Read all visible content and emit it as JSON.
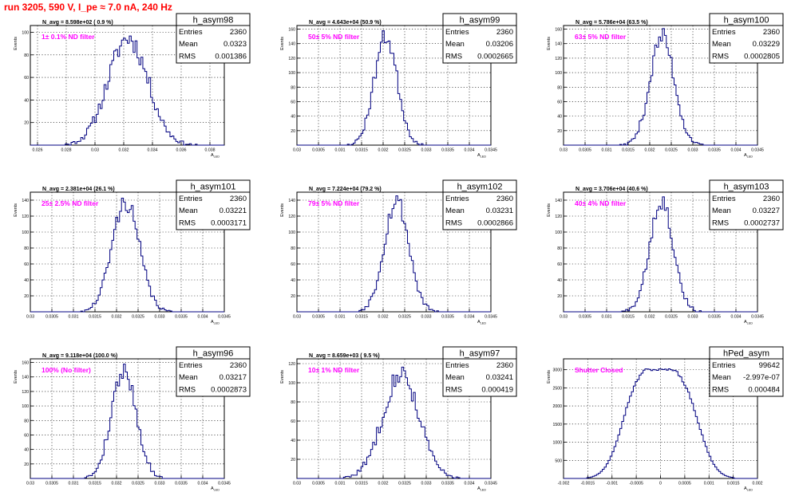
{
  "run_title": "run 3205,   590 V, I_pe ≈ 7.0 nA, 240 Hz",
  "colors": {
    "hist": "#000080",
    "annot": "#ff00ff",
    "title": "#ff0000",
    "grid": "#000000"
  },
  "stats_labels": {
    "entries": "Entries",
    "mean": "Mean",
    "rms": "RMS"
  },
  "ylabel": "Events",
  "xlabel": "A",
  "xlabel_sub": "LED",
  "chart_data": [
    {
      "type": "bar",
      "name": "h_asym98",
      "navg": "N_avg = 8.598e+02 ( 0.9 %)",
      "note": "1± 0.1% ND filter",
      "stats": {
        "entries": "2360",
        "mean": "0.0323",
        "rms": "0.001386"
      },
      "xlim": [
        0.0255,
        0.039
      ],
      "ylim": [
        0,
        106
      ],
      "xticks": [
        0.026,
        0.028,
        0.03,
        0.032,
        0.034,
        0.036,
        0.038
      ],
      "xtick_labels": [
        "0.026",
        "0.028",
        "0.03",
        "0.032",
        "0.034",
        "0.036",
        "0.038"
      ],
      "yticks": [
        20,
        40,
        60,
        80,
        100
      ],
      "ytick_labels": [
        "20",
        "40",
        "60",
        "80",
        "100"
      ],
      "mean": 0.0323,
      "sigma": 0.001386,
      "peak": 95,
      "seed": 11
    },
    {
      "type": "bar",
      "name": "h_asym99",
      "navg": "N_avg = 4.643e+04 (50.9 %)",
      "note": "50± 5% ND filter",
      "stats": {
        "entries": "2360",
        "mean": "0.03206",
        "rms": "0.0002665"
      },
      "xlim": [
        0.03,
        0.0345
      ],
      "ylim": [
        0,
        165
      ],
      "xticks": [
        0.03,
        0.0305,
        0.031,
        0.0315,
        0.032,
        0.0325,
        0.033,
        0.0335,
        0.034,
        0.0345
      ],
      "xtick_labels": [
        "0.03",
        "0.0305",
        "0.031",
        "0.0315",
        "0.032",
        "0.0325",
        "0.033",
        "0.0335",
        "0.034",
        "0.0345"
      ],
      "yticks": [
        20,
        40,
        60,
        80,
        100,
        120,
        140,
        160
      ],
      "ytick_labels": [
        "20",
        "40",
        "60",
        "80",
        "100",
        "120",
        "140",
        "160"
      ],
      "mean": 0.03206,
      "sigma": 0.0002665,
      "peak": 150,
      "seed": 23
    },
    {
      "type": "bar",
      "name": "h_asym100",
      "navg": "N_avg = 5.786e+04 (63.5 %)",
      "note": "63± 5% ND filter",
      "stats": {
        "entries": "2360",
        "mean": "0.03229",
        "rms": "0.0002805"
      },
      "xlim": [
        0.03,
        0.0345
      ],
      "ylim": [
        0,
        165
      ],
      "xticks": [
        0.03,
        0.0305,
        0.031,
        0.0315,
        0.032,
        0.0325,
        0.033,
        0.0335,
        0.034,
        0.0345
      ],
      "xtick_labels": [
        "0.03",
        "0.0305",
        "0.031",
        "0.0315",
        "0.032",
        "0.0325",
        "0.033",
        "0.0335",
        "0.034",
        "0.0345"
      ],
      "yticks": [
        20,
        40,
        60,
        80,
        100,
        120,
        140,
        160
      ],
      "ytick_labels": [
        "20",
        "40",
        "60",
        "80",
        "100",
        "120",
        "140",
        "160"
      ],
      "mean": 0.03229,
      "sigma": 0.0002805,
      "peak": 150,
      "seed": 37
    },
    {
      "type": "bar",
      "name": "h_asym101",
      "navg": "N_avg = 2.381e+04 (26.1 %)",
      "note": "25± 2.5% ND filter",
      "stats": {
        "entries": "2360",
        "mean": "0.03221",
        "rms": "0.0003171"
      },
      "xlim": [
        0.03,
        0.0345
      ],
      "ylim": [
        0,
        150
      ],
      "xticks": [
        0.03,
        0.0305,
        0.031,
        0.0315,
        0.032,
        0.0325,
        0.033,
        0.0335,
        0.034,
        0.0345
      ],
      "xtick_labels": [
        "0.03",
        "0.0305",
        "0.031",
        "0.0315",
        "0.032",
        "0.0325",
        "0.033",
        "0.0335",
        "0.034",
        "0.0345"
      ],
      "yticks": [
        20,
        40,
        60,
        80,
        100,
        120,
        140
      ],
      "ytick_labels": [
        "20",
        "40",
        "60",
        "80",
        "100",
        "120",
        "140"
      ],
      "mean": 0.03221,
      "sigma": 0.0003171,
      "peak": 138,
      "seed": 41
    },
    {
      "type": "bar",
      "name": "h_asym102",
      "navg": "N_avg = 7.224e+04 (79.2 %)",
      "note": "79± 5% ND filter",
      "stats": {
        "entries": "2360",
        "mean": "0.03231",
        "rms": "0.0002866"
      },
      "xlim": [
        0.03,
        0.0345
      ],
      "ylim": [
        0,
        150
      ],
      "xticks": [
        0.03,
        0.0305,
        0.031,
        0.0315,
        0.032,
        0.0325,
        0.033,
        0.0335,
        0.034,
        0.0345
      ],
      "xtick_labels": [
        "0.03",
        "0.0305",
        "0.031",
        "0.0315",
        "0.032",
        "0.0325",
        "0.033",
        "0.0335",
        "0.034",
        "0.0345"
      ],
      "yticks": [
        20,
        40,
        60,
        80,
        100,
        120,
        140
      ],
      "ytick_labels": [
        "20",
        "40",
        "60",
        "80",
        "100",
        "120",
        "140"
      ],
      "mean": 0.03231,
      "sigma": 0.0002866,
      "peak": 140,
      "seed": 53
    },
    {
      "type": "bar",
      "name": "h_asym103",
      "navg": "N_avg = 3.706e+04 (40.6 %)",
      "note": "40± 4% ND filter",
      "stats": {
        "entries": "2360",
        "mean": "0.03227",
        "rms": "0.0002737"
      },
      "xlim": [
        0.03,
        0.0345
      ],
      "ylim": [
        0,
        150
      ],
      "xticks": [
        0.03,
        0.0305,
        0.031,
        0.0315,
        0.032,
        0.0325,
        0.033,
        0.0335,
        0.034,
        0.0345
      ],
      "xtick_labels": [
        "0.03",
        "0.0305",
        "0.031",
        "0.0315",
        "0.032",
        "0.0325",
        "0.033",
        "0.0335",
        "0.034",
        "0.0345"
      ],
      "yticks": [
        20,
        40,
        60,
        80,
        100,
        120,
        140
      ],
      "ytick_labels": [
        "20",
        "40",
        "60",
        "80",
        "100",
        "120",
        "140"
      ],
      "mean": 0.03227,
      "sigma": 0.0002737,
      "peak": 140,
      "seed": 67
    },
    {
      "type": "bar",
      "name": "h_asym96",
      "navg": "N_avg = 9.118e+04 (100.0 %)",
      "note": "100% (No filter)",
      "stats": {
        "entries": "2360",
        "mean": "0.03217",
        "rms": "0.0002873"
      },
      "xlim": [
        0.03,
        0.0345
      ],
      "ylim": [
        0,
        165
      ],
      "xticks": [
        0.03,
        0.0305,
        0.031,
        0.0315,
        0.032,
        0.0325,
        0.033,
        0.0335,
        0.034,
        0.0345
      ],
      "xtick_labels": [
        "0.03",
        "0.0305",
        "0.031",
        "0.0315",
        "0.032",
        "0.0325",
        "0.033",
        "0.0335",
        "0.034",
        "0.0345"
      ],
      "yticks": [
        20,
        40,
        60,
        80,
        100,
        120,
        140,
        160
      ],
      "ytick_labels": [
        "20",
        "40",
        "60",
        "80",
        "100",
        "120",
        "140",
        "160"
      ],
      "mean": 0.03217,
      "sigma": 0.0002873,
      "peak": 150,
      "seed": 79
    },
    {
      "type": "bar",
      "name": "h_asym97",
      "navg": "N_avg = 8.659e+03 ( 9.5 %)",
      "note": "10± 1% ND filter",
      "stats": {
        "entries": "2360",
        "mean": "0.03241",
        "rms": "0.000419"
      },
      "xlim": [
        0.03,
        0.0345
      ],
      "ylim": [
        0,
        125
      ],
      "xticks": [
        0.03,
        0.0305,
        0.031,
        0.0315,
        0.032,
        0.0325,
        0.033,
        0.0335,
        0.034,
        0.0345
      ],
      "xtick_labels": [
        "0.03",
        "0.0305",
        "0.031",
        "0.0315",
        "0.032",
        "0.0325",
        "0.033",
        "0.0335",
        "0.034",
        "0.0345"
      ],
      "yticks": [
        20,
        40,
        60,
        80,
        100,
        120
      ],
      "ytick_labels": [
        "20",
        "40",
        "60",
        "80",
        "100",
        "120"
      ],
      "mean": 0.03241,
      "sigma": 0.000419,
      "peak": 110,
      "seed": 83
    },
    {
      "type": "bar",
      "name": "hPed_asym",
      "navg": "",
      "note": "Shutter Closed",
      "stats": {
        "entries": "99642",
        "mean": "-2.997e-07",
        "rms": "0.000484"
      },
      "xlim": [
        -0.002,
        0.002
      ],
      "ylim": [
        0,
        3300
      ],
      "xticks": [
        -0.002,
        -0.0015,
        -0.001,
        -0.0005,
        0,
        0.0005,
        0.001,
        0.0015,
        0.002
      ],
      "xtick_labels": [
        "-0.002",
        "-0.0015",
        "-0.001",
        "-0.0005",
        "0",
        "0.0005",
        "0.001",
        "0.0015",
        "0.002"
      ],
      "yticks": [
        500,
        1000,
        1500,
        2000,
        2500,
        3000
      ],
      "ytick_labels": [
        "500",
        "1000",
        "1500",
        "2000",
        "2500",
        "3000"
      ],
      "mean": 0,
      "sigma": 0.000484,
      "peak": 3000,
      "seed": 97,
      "shape": "pedestal"
    }
  ]
}
